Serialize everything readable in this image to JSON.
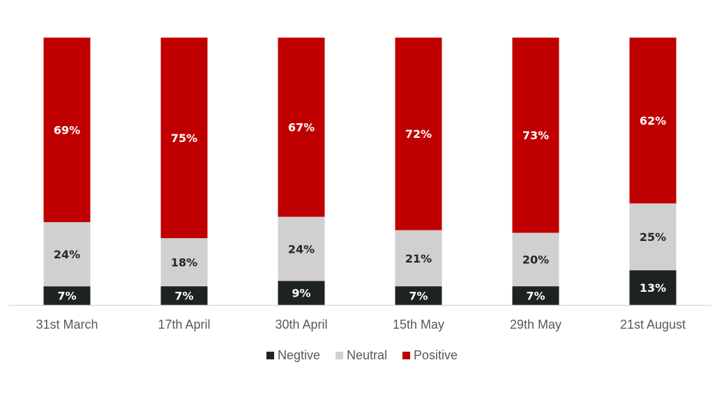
{
  "chart_data": {
    "type": "bar",
    "stacked": true,
    "categories": [
      "31st March",
      "17th April",
      "30th April",
      "15th May",
      "29th May",
      "21st August"
    ],
    "series": [
      {
        "name": "Negtive",
        "color": "#1d2222",
        "label_color": "#ffffff",
        "values": [
          7,
          7,
          9,
          7,
          7,
          13
        ],
        "labels": [
          "7%",
          "7%",
          "9%",
          "7%",
          "7%",
          "13%"
        ]
      },
      {
        "name": "Neutral",
        "color": "#d1cfcf",
        "label_color": "#262626",
        "values": [
          24,
          18,
          24,
          21,
          20,
          25
        ],
        "labels": [
          "24%",
          "18%",
          "24%",
          "21%",
          "20%",
          "25%"
        ]
      },
      {
        "name": "Positive",
        "color": "#c00000",
        "label_color": "#ffffff",
        "values": [
          69,
          75,
          67,
          72,
          73,
          62
        ],
        "labels": [
          "69%",
          "75%",
          "67%",
          "72%",
          "73%",
          "62%"
        ]
      }
    ],
    "ylim": [
      0,
      100
    ],
    "grid": false,
    "legend_position": "bottom",
    "title": "",
    "xlabel": "",
    "ylabel": ""
  },
  "colors": {
    "axis": "#d9d9d9",
    "tick_text": "#595959"
  }
}
